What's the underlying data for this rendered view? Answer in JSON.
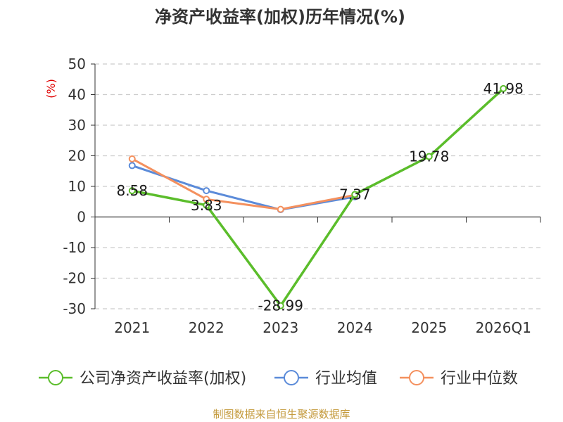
{
  "chart_data": {
    "type": "line",
    "title": "净资产收益率(加权)历年情况(%)",
    "ylabel": "(%)",
    "categories": [
      "2021",
      "2022",
      "2023",
      "2024",
      "2025",
      "2026Q1"
    ],
    "ylim": [
      -30,
      50
    ],
    "yticks": [
      50,
      40,
      30,
      20,
      10,
      0,
      -10,
      -20,
      -30
    ],
    "grid": true,
    "legend_position": "bottom",
    "series": [
      {
        "name": "公司净资产收益率(加权)",
        "color": "#5bbd2b",
        "values": [
          8.58,
          3.83,
          -28.99,
          7.37,
          19.78,
          41.98
        ],
        "labels": [
          "8.58",
          "3.83",
          "-28.99",
          "7.37",
          "19.78",
          "41.98"
        ]
      },
      {
        "name": "行业均值",
        "color": "#5b8bd9",
        "values": [
          16.8,
          8.6,
          2.4,
          6.6,
          null,
          null
        ]
      },
      {
        "name": "行业中位数",
        "color": "#f4905e",
        "values": [
          19.0,
          5.8,
          2.5,
          7.2,
          null,
          null
        ]
      }
    ]
  },
  "source_text": "制图数据来自恒生聚源数据库"
}
